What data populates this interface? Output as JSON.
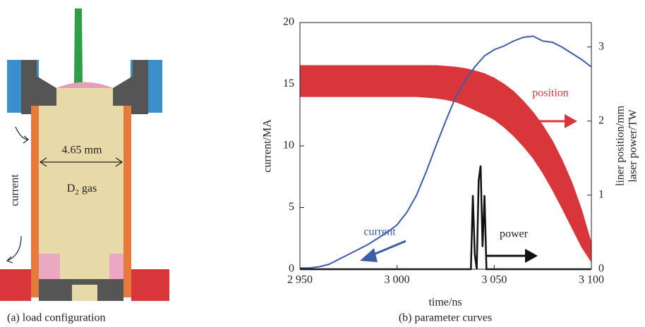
{
  "diagram": {
    "width_label": "4.65 mm",
    "current_label": "current",
    "gas_label": {
      "symbol": "D",
      "subscript": "2",
      "suffix": "gas"
    },
    "caption": "(a) load configuration"
  },
  "chart_data": {
    "type": "line",
    "caption": "(b) parameter curves",
    "x_label": "time/ns",
    "y_label": "current/MA",
    "y2_label": [
      "liner position/mm",
      "laser power/TW"
    ],
    "x": [
      2950,
      2955,
      2960,
      2965,
      2970,
      2975,
      2980,
      2985,
      2990,
      2995,
      3000,
      3005,
      3010,
      3015,
      3020,
      3025,
      3030,
      3035,
      3040,
      3045,
      3050,
      3055,
      3060,
      3065,
      3070,
      3075,
      3080,
      3085,
      3090,
      3095,
      3100
    ],
    "xlim": [
      2950,
      3100
    ],
    "xticks": [
      {
        "value": 2950,
        "label": "2 950"
      },
      {
        "value": 3000,
        "label": "3 000"
      },
      {
        "value": 3050,
        "label": "3 050"
      },
      {
        "value": 3100,
        "label": "3 100"
      }
    ],
    "ylim": [
      0,
      20
    ],
    "yticks": [
      0,
      5,
      10,
      15,
      20
    ],
    "y2lim": [
      0,
      3.33
    ],
    "y2ticks": [
      0,
      1,
      2,
      3
    ],
    "series": [
      {
        "name": "current",
        "color": "#3a5ea8",
        "axis": "y",
        "values": [
          0.1,
          0.1,
          0.2,
          0.4,
          0.8,
          1.2,
          1.6,
          2.0,
          2.5,
          3.0,
          3.6,
          4.6,
          6.0,
          7.9,
          10.0,
          12.0,
          13.9,
          15.3,
          16.4,
          17.3,
          17.8,
          18.1,
          18.5,
          18.8,
          18.9,
          18.5,
          18.4,
          18.0,
          17.5,
          17.0,
          16.4
        ]
      },
      {
        "name": "position",
        "color": "#d8363a",
        "axis": "y2",
        "kind": "band",
        "values": [
          2.75,
          2.75,
          2.75,
          2.75,
          2.75,
          2.75,
          2.75,
          2.75,
          2.75,
          2.75,
          2.75,
          2.75,
          2.75,
          2.75,
          2.75,
          2.74,
          2.73,
          2.71,
          2.68,
          2.64,
          2.58,
          2.5,
          2.4,
          2.27,
          2.12,
          1.94,
          1.73,
          1.47,
          1.17,
          0.8,
          0.35
        ],
        "lower_values": [
          2.33,
          2.33,
          2.33,
          2.33,
          2.33,
          2.33,
          2.33,
          2.33,
          2.33,
          2.33,
          2.33,
          2.33,
          2.33,
          2.32,
          2.31,
          2.29,
          2.26,
          2.21,
          2.15,
          2.09,
          2.02,
          1.92,
          1.8,
          1.66,
          1.5,
          1.3,
          1.07,
          0.82,
          0.56,
          0.3,
          0.1
        ]
      },
      {
        "name": "power",
        "color": "#111111",
        "axis": "y2",
        "x": [
          2950,
          3038,
          3039,
          3040,
          3041,
          3042,
          3043,
          3044,
          3045,
          3046,
          3100
        ],
        "values": [
          0,
          0,
          1.0,
          0.2,
          0,
          1.2,
          1.4,
          0.3,
          1.0,
          0,
          0
        ]
      }
    ]
  }
}
